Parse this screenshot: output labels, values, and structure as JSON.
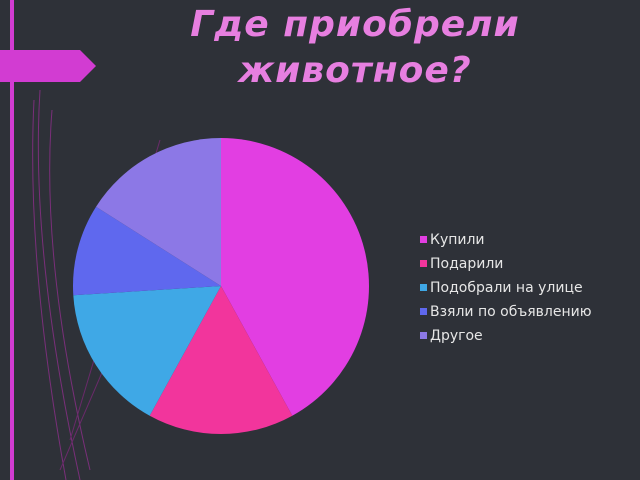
{
  "chart_data": {
    "type": "pie",
    "title": "Где приобрели животное?",
    "categories": [
      "Купили",
      "Подарили",
      "Подобрали на улице",
      "Взяли по объявлению",
      "Другое"
    ],
    "values": [
      42,
      16,
      16,
      10,
      16
    ],
    "colors": [
      "#e23ee2",
      "#f2359c",
      "#3fa8e6",
      "#5f68ee",
      "#8c78e6"
    ],
    "legend": "right"
  }
}
